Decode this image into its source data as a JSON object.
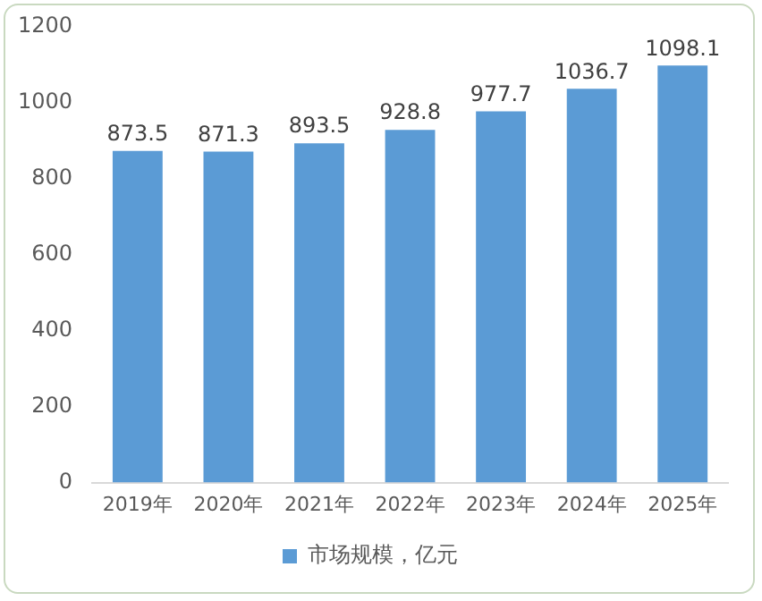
{
  "chart_data": {
    "type": "bar",
    "categories": [
      "2019年",
      "2020年",
      "2021年",
      "2022年",
      "2023年",
      "2024年",
      "2025年"
    ],
    "series": [
      {
        "name": "市场规模，亿元",
        "color": "#5b9bd5",
        "values": [
          873.5,
          871.3,
          893.5,
          928.8,
          977.7,
          1036.7,
          1098.1
        ]
      }
    ],
    "ylim": [
      0,
      1200
    ],
    "yticks": [
      0,
      200,
      400,
      600,
      800,
      1000,
      1200
    ],
    "grid": false,
    "legend": "bottom",
    "data_labels": true
  }
}
